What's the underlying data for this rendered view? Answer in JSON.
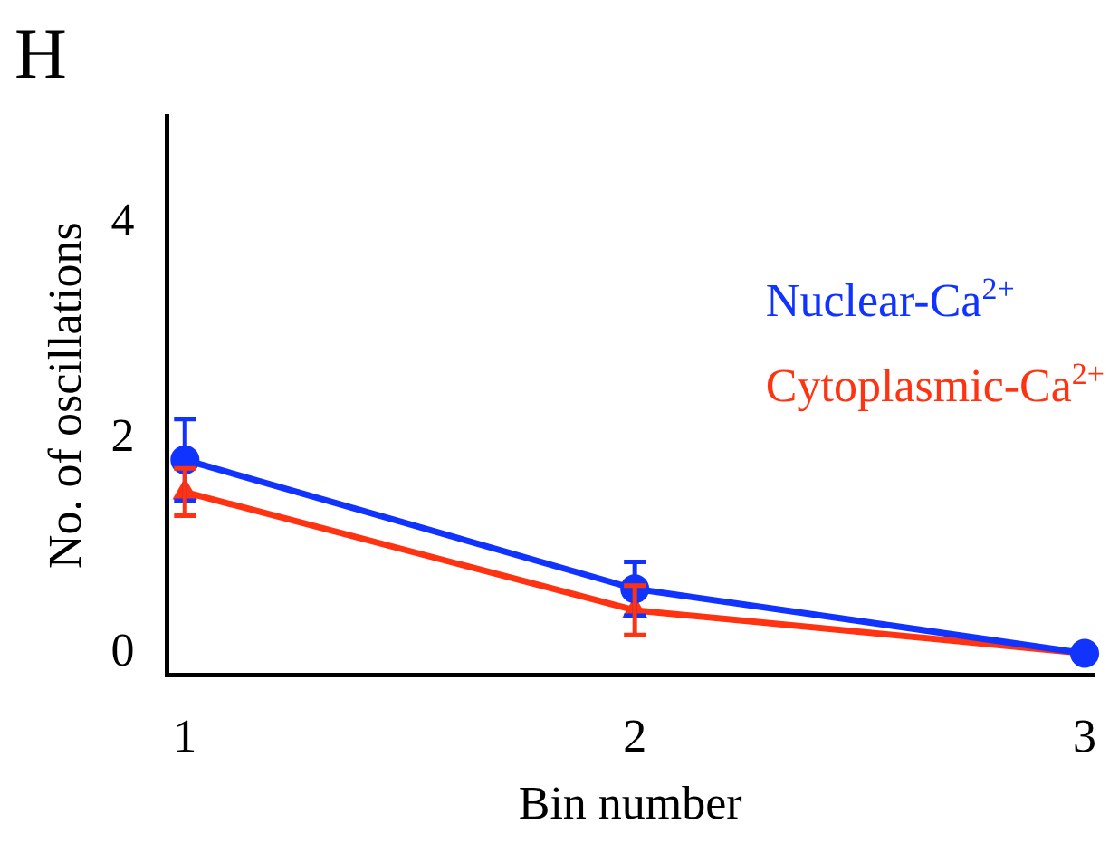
{
  "chart_data": {
    "type": "line",
    "xlabel": "Bin number",
    "ylabel": "No. of oscillations",
    "annotations": [
      "H"
    ],
    "x": [
      1,
      2,
      3
    ],
    "xlim": [
      0.96,
      3.02
    ],
    "xticks": [
      1,
      2,
      3
    ],
    "ylim": [
      -0.2,
      5
    ],
    "yticks": [
      0,
      2,
      4
    ],
    "grid": false,
    "legend": "top right",
    "line_style": "solid",
    "series": [
      {
        "name": "Nuclear-Ca$^{2+}$",
        "color": "#1133ff",
        "marker": "circle",
        "values": [
          1.8,
          0.6,
          0
        ],
        "errors": [
          0.38,
          0.25,
          null
        ]
      },
      {
        "name": "Cytoplasmic-Ca$^{2+}$",
        "color": "#ff3311",
        "marker": "triangle",
        "values": [
          1.5,
          0.4,
          0
        ],
        "errors": [
          0.22,
          0.23,
          null
        ]
      }
    ]
  }
}
